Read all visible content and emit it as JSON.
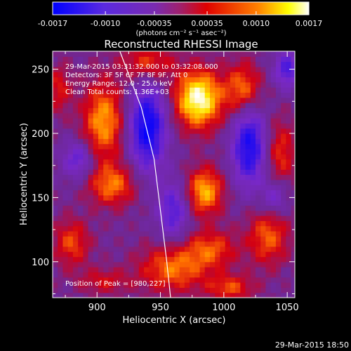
{
  "colorbar": {
    "tick_labels": [
      "-0.0017",
      "-0.0010",
      "-0.00035",
      "0.00035",
      "0.0010",
      "0.0017"
    ],
    "tick_values": [
      -0.0017,
      -0.001,
      -0.00035,
      0.00035,
      0.001,
      0.0017
    ],
    "unit_label": "(photons cm⁻² s⁻¹ asec⁻²)",
    "range": [
      -0.0017,
      0.0017
    ]
  },
  "chart_data": {
    "type": "heatmap",
    "title": "Reconstructed RHESSI Image",
    "xlabel": "Heliocentric X (arcsec)",
    "ylabel": "Heliocentric Y (arcsec)",
    "xlim": [
      865,
      1056
    ],
    "ylim": [
      72,
      264
    ],
    "x_ticks": [
      900,
      950,
      1000,
      1050
    ],
    "y_ticks": [
      100,
      150,
      200,
      250
    ],
    "colormap": [
      "#0000ff",
      "#8a2be2",
      "#ff0000",
      "#ff8c00",
      "#ffff00",
      "#ffffff"
    ],
    "limb_curve": [
      [
        918,
        264
      ],
      [
        935,
        220
      ],
      [
        945,
        180
      ],
      [
        950,
        140
      ],
      [
        955,
        100
      ],
      [
        958,
        72
      ]
    ],
    "annotations": [
      "29-Mar-2015 03:31:32.000 to 03:32:08.000",
      "Detectors: 3F 5F 6F 7F 8F 9F, Att 0",
      "Energy Range: 12.0 - 25.0 keV",
      "Clean    Total counts: 1.36E+03"
    ],
    "peak_label": "Position of Peak = [980,227]",
    "peak": [
      980,
      227
    ]
  },
  "footer": {
    "timestamp": "29-Mar-2015 18:50"
  }
}
